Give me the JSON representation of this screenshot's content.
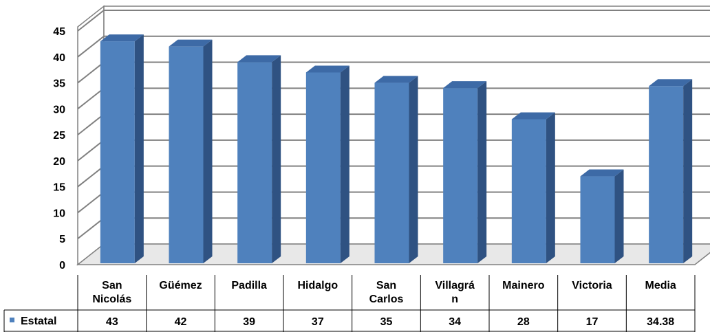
{
  "chart_data": {
    "type": "bar",
    "title": "",
    "xlabel": "",
    "ylabel": "",
    "ylim": [
      0,
      45
    ],
    "y_ticks": [
      "0",
      "5",
      "10",
      "15",
      "20",
      "25",
      "30",
      "35",
      "40",
      "45"
    ],
    "grid": true,
    "categories": [
      [
        "San",
        "Nicolás"
      ],
      [
        "Güémez"
      ],
      [
        "Padilla"
      ],
      [
        "Hidalgo"
      ],
      [
        "San",
        "Carlos"
      ],
      [
        "Villagrá",
        "n"
      ],
      [
        "Mainero"
      ],
      [
        "Victoria"
      ],
      [
        "Media"
      ]
    ],
    "series": [
      {
        "name": "Estatal",
        "values": [
          43,
          42,
          39,
          37,
          35,
          34,
          28,
          17,
          34.38
        ],
        "value_labels": [
          "43",
          "42",
          "39",
          "37",
          "35",
          "34",
          "28",
          "17",
          "34.38"
        ]
      }
    ],
    "legend": "data-table",
    "colors": {
      "bar_front": "#4f81bd",
      "bar_side": "#2f5282",
      "bar_top": "#3d6aa6",
      "grid": "#808080",
      "wall": "#ffffff",
      "floor": "#e8e8e8"
    }
  }
}
